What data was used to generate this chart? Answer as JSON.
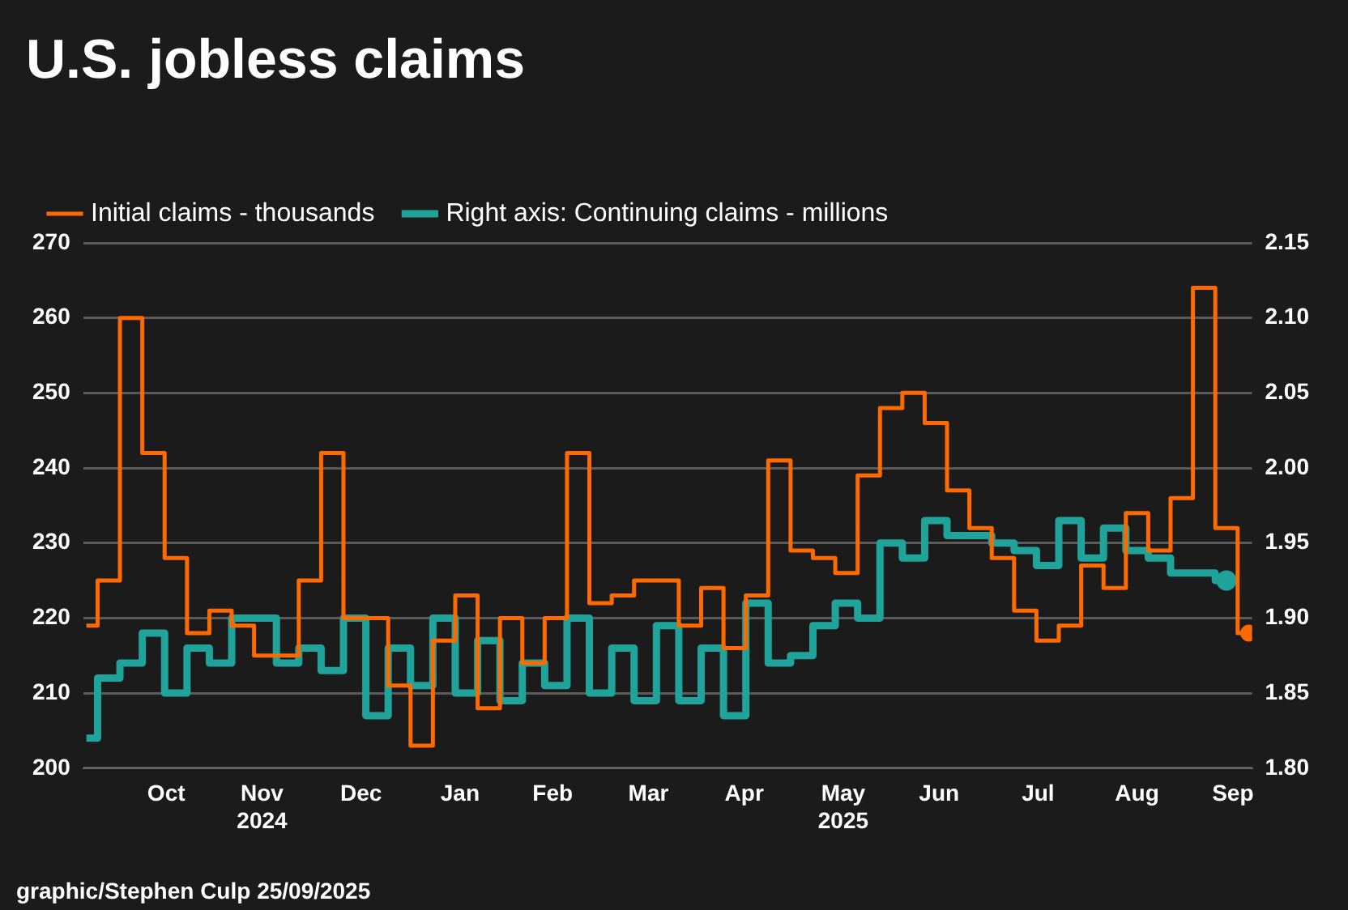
{
  "chart_data": {
    "type": "step",
    "title": "U.S. jobless claims",
    "x": [
      "2024-09-21",
      "2024-09-28",
      "2024-10-05",
      "2024-10-12",
      "2024-10-19",
      "2024-10-26",
      "2024-11-02",
      "2024-11-09",
      "2024-11-16",
      "2024-11-23",
      "2024-11-30",
      "2024-12-07",
      "2024-12-14",
      "2024-12-21",
      "2024-12-28",
      "2025-01-04",
      "2025-01-11",
      "2025-01-18",
      "2025-01-25",
      "2025-02-01",
      "2025-02-08",
      "2025-02-15",
      "2025-02-22",
      "2025-03-01",
      "2025-03-08",
      "2025-03-15",
      "2025-03-22",
      "2025-03-29",
      "2025-04-05",
      "2025-04-12",
      "2025-04-19",
      "2025-04-26",
      "2025-05-03",
      "2025-05-10",
      "2025-05-17",
      "2025-05-24",
      "2025-05-31",
      "2025-06-07",
      "2025-06-14",
      "2025-06-21",
      "2025-06-28",
      "2025-07-05",
      "2025-07-12",
      "2025-07-19",
      "2025-07-26",
      "2025-08-02",
      "2025-08-09",
      "2025-08-16",
      "2025-08-23",
      "2025-08-30",
      "2025-09-06",
      "2025-09-13",
      "2025-09-20"
    ],
    "series": [
      {
        "name": "Initial claims - thousands",
        "color": "#ff6a00",
        "values": [
          219,
          225,
          260,
          242,
          228,
          218,
          221,
          219,
          215,
          215,
          225,
          242,
          220,
          220,
          211,
          203,
          217,
          223,
          208,
          220,
          214,
          220,
          242,
          222,
          223,
          225,
          225,
          219,
          224,
          216,
          223,
          241,
          229,
          228,
          226,
          239,
          248,
          250,
          246,
          237,
          232,
          228,
          221,
          217,
          219,
          227,
          224,
          234,
          229,
          236,
          264,
          232,
          218
        ]
      },
      {
        "name": "Right axis: Continuing claims - millions",
        "color": "#1fa39a",
        "axis": "y2",
        "values": [
          1.82,
          1.86,
          1.87,
          1.89,
          1.85,
          1.88,
          1.87,
          1.9,
          1.9,
          1.87,
          1.88,
          1.865,
          1.9,
          1.835,
          1.88,
          1.855,
          1.9,
          1.85,
          1.885,
          1.845,
          1.87,
          1.855,
          1.9,
          1.85,
          1.88,
          1.845,
          1.895,
          1.845,
          1.88,
          1.835,
          1.91,
          1.87,
          1.875,
          1.895,
          1.91,
          1.9,
          1.95,
          1.94,
          1.965,
          1.955,
          1.955,
          1.95,
          1.945,
          1.935,
          1.965,
          1.94,
          1.96,
          1.945,
          1.94,
          1.93,
          1.93,
          1.925,
          null
        ]
      }
    ],
    "xlim": [
      "2024-09-20",
      "2025-09-21"
    ],
    "xticks": [
      {
        "value": "2024-10-16",
        "label": "Oct"
      },
      {
        "value": "2024-11-15",
        "label": "Nov\n2024"
      },
      {
        "value": "2024-12-16",
        "label": "Dec"
      },
      {
        "value": "2025-01-16",
        "label": "Jan"
      },
      {
        "value": "2025-02-14",
        "label": "Feb"
      },
      {
        "value": "2025-03-16",
        "label": "Mar"
      },
      {
        "value": "2025-04-15",
        "label": "Apr"
      },
      {
        "value": "2025-05-16",
        "label": "May\n2025"
      },
      {
        "value": "2025-06-15",
        "label": "Jun"
      },
      {
        "value": "2025-07-16",
        "label": "Jul"
      },
      {
        "value": "2025-08-16",
        "label": "Aug"
      },
      {
        "value": "2025-09-15",
        "label": "Sep"
      }
    ],
    "ylim": [
      200,
      270
    ],
    "yticks": [
      200,
      210,
      220,
      230,
      240,
      250,
      260,
      270
    ],
    "y2lim": [
      1.8,
      2.15
    ],
    "y2ticks": [
      {
        "value": 1.8,
        "label": "1.80"
      },
      1.85,
      {
        "value": 1.9,
        "label": "1.90"
      },
      1.95,
      {
        "value": 2,
        "label": "2.00"
      },
      2.05,
      {
        "value": 2.1,
        "label": "2.10"
      },
      2.15
    ],
    "grid": "y",
    "legend": "top left",
    "annotations": [
      "graphic/Stephen Culp 25/09/2025"
    ]
  }
}
